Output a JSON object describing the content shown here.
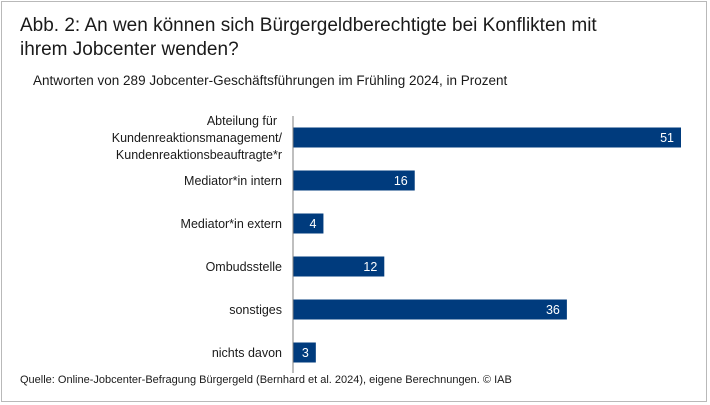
{
  "chart_data": {
    "type": "bar",
    "orientation": "horizontal",
    "title": "Abb. 2: An wen können sich Bürgergeldberechtigte bei Konflikten mit ihrem Jobcenter wenden?",
    "subtitle": "Antworten von 289 Jobcenter-Geschäftsführungen im Frühling 2024, in Prozent",
    "categories": [
      [
        "Abteilung  für",
        "Kundenreaktionsmanagement/",
        "Kundenreaktionsbeauftragte*r"
      ],
      [
        "Mediator*in intern"
      ],
      [
        "Mediator*in extern"
      ],
      [
        "Ombudsstelle"
      ],
      [
        "sonstiges"
      ],
      [
        "nichts davon"
      ]
    ],
    "values": [
      51,
      16,
      4,
      12,
      36,
      3
    ],
    "xlim": [
      0,
      55
    ],
    "grid": false,
    "legend": false,
    "xlabel": "",
    "ylabel": "",
    "source": "Quelle: Online-Jobcenter-Befragung Bürgergeld (Bernhard et al. 2024), eigene Berechnungen.  © IAB"
  },
  "colors": {
    "bar": "#003b7d",
    "bar_label": "#ffffff",
    "text": "#1a1a1a",
    "axis": "#7f7f7f",
    "border": "#b9b9b9"
  }
}
